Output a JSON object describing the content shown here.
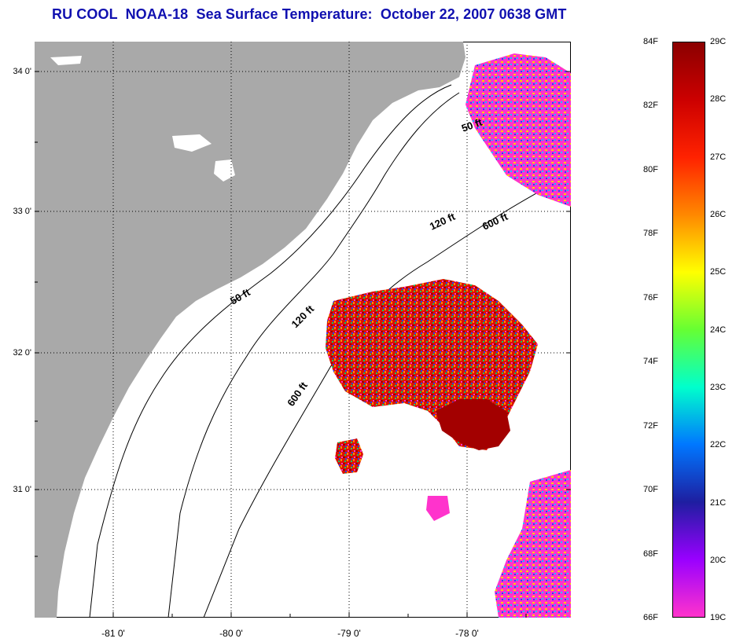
{
  "title": "RU COOL  NOAA-18  Sea Surface Temperature:  October 22, 2007 0638 GMT",
  "map": {
    "lat_labels": [
      "34 0'",
      "33 0'",
      "32 0'",
      "31 0'"
    ],
    "lon_labels": [
      "-81 0'",
      "-80 0'",
      "-79 0'",
      "-78 0'"
    ],
    "contour_labels": [
      "50 ft",
      "120 ft",
      "600 ft",
      "50 ft",
      "120 ft",
      "600 ft"
    ],
    "colors": {
      "land": "#a9a9a9",
      "ocean_no_data": "#ffffff",
      "cool": "#ff33cc",
      "warm": "#dd0000",
      "hot": "#990000"
    }
  },
  "colorbar": {
    "fahrenheit": [
      "84F",
      "82F",
      "80F",
      "78F",
      "76F",
      "74F",
      "72F",
      "70F",
      "68F",
      "66F"
    ],
    "celsius": [
      "29C",
      "28C",
      "27C",
      "26C",
      "25C",
      "24C",
      "23C",
      "22C",
      "21C",
      "20C",
      "19C"
    ],
    "gradient": [
      "#8b0000",
      "#cc0000",
      "#ff2200",
      "#ff8800",
      "#ffff00",
      "#66ff33",
      "#00ffcc",
      "#0077ff",
      "#1e1ea0",
      "#9900ff",
      "#ff33cc"
    ]
  }
}
